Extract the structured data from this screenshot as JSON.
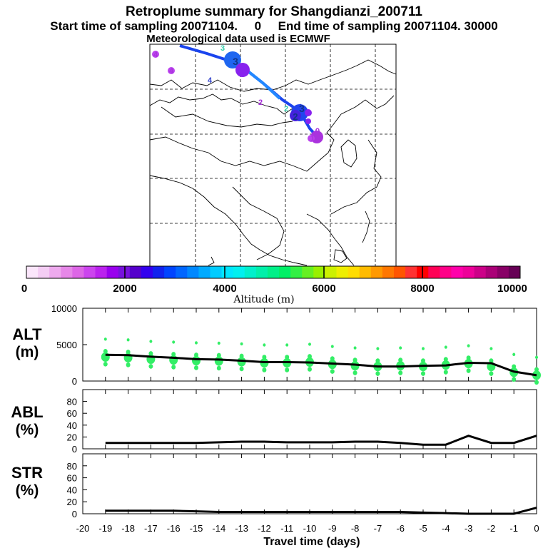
{
  "header": {
    "title": "Retroplume summary for Shangdianzi_200711",
    "line2": "Start time of sampling 20071104.     0     End time of sampling 20071104. 30000",
    "line3": "Meteorological data used is ECMWF"
  },
  "colors": {
    "marker": "#33ee66",
    "line": "#000000",
    "track": "#1a44ee",
    "track_light": "#2288ff"
  },
  "colorbar": {
    "ticks": [
      "0",
      "2000",
      "4000",
      "6000",
      "8000",
      "10000"
    ],
    "label": "Altitude (m)",
    "swatches": [
      "#fbe6fb",
      "#f4cdf4",
      "#eeaaee",
      "#e687e8",
      "#dd66e6",
      "#cc44ee",
      "#bb22ee",
      "#9900ee",
      "#7711dd",
      "#5500cc",
      "#3300ee",
      "#1122ee",
      "#0044ff",
      "#0066ff",
      "#0088ff",
      "#00aaff",
      "#00ccff",
      "#00e6ff",
      "#00f0f0",
      "#00f0cc",
      "#00f0aa",
      "#00f088",
      "#00f066",
      "#33f044",
      "#66f022",
      "#99f000",
      "#ccf000",
      "#eeee00",
      "#ffdd00",
      "#ffbb00",
      "#ff9900",
      "#ff7700",
      "#ff5500",
      "#ff3333",
      "#ff0000",
      "#ff0055",
      "#ff0088",
      "#ff00aa",
      "#ee0099",
      "#cc0088",
      "#aa0077",
      "#880066",
      "#660055"
    ]
  },
  "map": {
    "labels": [
      {
        "text": "4",
        "color": "#aa33dd"
      },
      {
        "text": "4",
        "color": "#aa33dd"
      },
      {
        "text": "4",
        "color": "#3344cc"
      },
      {
        "text": "3",
        "color": "#33ccaa"
      },
      {
        "text": "3",
        "color": "#113388"
      },
      {
        "text": "2",
        "color": "#aa33dd"
      },
      {
        "text": "2",
        "color": "#33ccaa"
      },
      {
        "text": "3",
        "color": "#113388"
      },
      {
        "text": "2",
        "color": "#113388"
      },
      {
        "text": "1",
        "color": "#aa33dd"
      },
      {
        "text": "0",
        "color": "#aa33dd"
      }
    ]
  },
  "chart_data": [
    {
      "type": "line",
      "panel": "ALT",
      "label": "ALT\n(m)",
      "label_line1": "ALT",
      "label_line2": "(m)",
      "ylim": [
        0,
        10000
      ],
      "yticks": [
        "10000",
        "5000",
        "0"
      ],
      "x": [
        -19,
        -18,
        -17,
        -16,
        -15,
        -14,
        -13,
        -12,
        -11,
        -10,
        -9,
        -8,
        -7,
        -6,
        -5,
        -4,
        -3,
        -2,
        -1,
        0
      ],
      "series": [
        {
          "name": "median altitude",
          "values": [
            3600,
            3550,
            3350,
            3200,
            3000,
            2950,
            2800,
            2600,
            2600,
            2550,
            2400,
            2250,
            2000,
            2000,
            2100,
            2150,
            2500,
            2450,
            1300,
            800
          ]
        },
        {
          "name": "plume spread",
          "type": "scatter",
          "values": [
            3300,
            3200,
            3000,
            2900,
            2800,
            2750,
            2650,
            2500,
            2500,
            2600,
            2300,
            2100,
            2000,
            2100,
            2000,
            2200,
            2400,
            2000,
            1200,
            800
          ]
        }
      ]
    },
    {
      "type": "line",
      "panel": "ABL",
      "label_line1": "ABL",
      "label_line2": "(%)",
      "ylim": [
        0,
        100
      ],
      "yticks": [
        "80",
        "60",
        "40",
        "20",
        "0"
      ],
      "x": [
        -19,
        -18,
        -17,
        -16,
        -15,
        -14,
        -13,
        -12,
        -11,
        -10,
        -9,
        -8,
        -7,
        -6,
        -5,
        -4,
        -3,
        -2,
        -1,
        0
      ],
      "series": [
        {
          "name": "ABL fraction",
          "values": [
            10,
            10,
            10,
            10,
            10,
            11,
            12,
            12,
            11,
            11,
            11,
            12,
            12,
            10,
            7,
            7,
            22,
            10,
            10,
            22
          ]
        }
      ]
    },
    {
      "type": "line",
      "panel": "STR",
      "label_line1": "STR",
      "label_line2": "(%)",
      "ylim": [
        0,
        100
      ],
      "yticks": [
        "80",
        "60",
        "40",
        "20",
        "0"
      ],
      "xlabel": "Travel time (days)",
      "xticks": [
        "-20",
        "-19",
        "-18",
        "-17",
        "-16",
        "-15",
        "-14",
        "-13",
        "-12",
        "-11",
        "-10",
        "-9",
        "-8",
        "-7",
        "-6",
        "-5",
        "-4",
        "-3",
        "-2",
        "-1",
        "0"
      ],
      "x": [
        -19,
        -18,
        -17,
        -16,
        -15,
        -14,
        -13,
        -12,
        -11,
        -10,
        -9,
        -8,
        -7,
        -6,
        -5,
        -4,
        -3,
        -2,
        -1,
        0
      ],
      "series": [
        {
          "name": "stratospheric fraction",
          "values": [
            5,
            5,
            5,
            5,
            4,
            3,
            3,
            3,
            3,
            3,
            3,
            3,
            3,
            3,
            2,
            1,
            0,
            0,
            0,
            10
          ]
        }
      ]
    }
  ]
}
